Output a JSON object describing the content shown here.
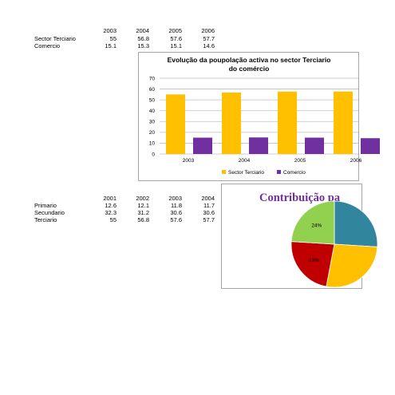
{
  "table1": {
    "years": [
      "2003",
      "2004",
      "2005",
      "2006"
    ],
    "rows": [
      {
        "label": "Sector Terciario",
        "values": [
          "55",
          "56.8",
          "57.6",
          "57.7"
        ]
      },
      {
        "label": "Comercio",
        "values": [
          "15.1",
          "15.3",
          "15.1",
          "14.6"
        ]
      }
    ]
  },
  "table2": {
    "years": [
      "2001",
      "2002",
      "2003",
      "2004"
    ],
    "rows": [
      {
        "label": "Primario",
        "values": [
          "12.6",
          "12.1",
          "11.8",
          "11.7"
        ]
      },
      {
        "label": "Secundario",
        "values": [
          "32.3",
          "31.2",
          "30.6",
          "30.6"
        ]
      },
      {
        "label": "Terciario",
        "values": [
          "55",
          "56.8",
          "57.6",
          "57.7"
        ]
      }
    ]
  },
  "chart_data": [
    {
      "type": "bar",
      "title_line1": "Evolução da poupolação activa no sector Terciario",
      "title_line2": "do comércio",
      "categories": [
        "2003",
        "2004",
        "2005",
        "2006"
      ],
      "series": [
        {
          "name": "Sector Terciario",
          "values": [
            55,
            56.8,
            57.6,
            57.7
          ],
          "color": "#FFC000"
        },
        {
          "name": "Comercio",
          "values": [
            15.1,
            15.3,
            15.1,
            14.6
          ],
          "color": "#7030A0"
        }
      ],
      "ylim": [
        0,
        70
      ],
      "yticks": [
        "0",
        "10",
        "20",
        "30",
        "40",
        "50",
        "60",
        "70"
      ],
      "grid": true,
      "legend": "bottom"
    },
    {
      "type": "pie",
      "title": "Contribuição pa",
      "title_color": "#7030A0",
      "slices": [
        {
          "label": "24%",
          "value": 24,
          "color": "#92D050"
        },
        {
          "label": "23%",
          "value": 23,
          "color": "#C00000"
        },
        {
          "label": "",
          "value": 27,
          "color": "#FFC000"
        },
        {
          "label": "",
          "value": 26,
          "color": "#31859C"
        }
      ]
    }
  ]
}
